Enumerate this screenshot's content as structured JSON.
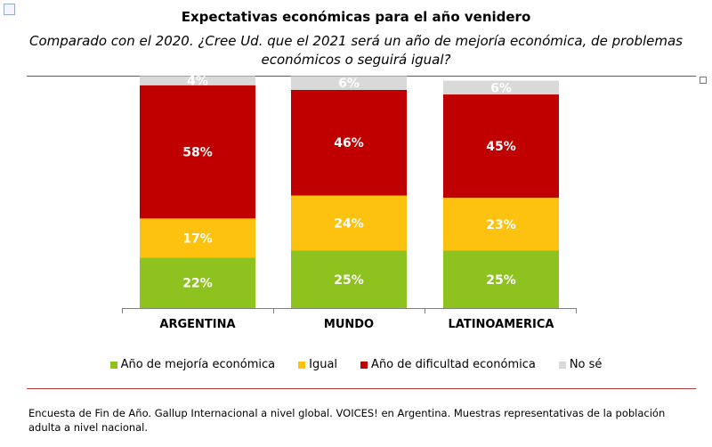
{
  "chart_data": {
    "type": "stacked-bar",
    "title": "Expectativas económicas para  el año venidero",
    "subtitle": "Comparado con el 2020. ¿Cree Ud. que el 2021 será un año de mejoría económica, de problemas económicos o seguirá igual?",
    "categories": [
      "ARGENTINA",
      "MUNDO",
      "LATINOAMERICA"
    ],
    "series": [
      {
        "name": "Año de mejoría económica",
        "color": "#8dc21f",
        "values": [
          22,
          25,
          25
        ]
      },
      {
        "name": "Igual",
        "color": "#fcc20f",
        "values": [
          17,
          24,
          23
        ]
      },
      {
        "name": "Año de dificultad económica",
        "color": "#c00000",
        "values": [
          58,
          46,
          45
        ]
      },
      {
        "name": "No sé",
        "color": "#d9d9d9",
        "values": [
          4,
          6,
          6
        ]
      }
    ],
    "value_suffix": "%",
    "ylim": [
      0,
      100
    ],
    "grid": false,
    "legend_position": "bottom"
  },
  "footer": "Encuesta de Fin de Año. Gallup Internacional a nivel global. VOICES! en Argentina. Muestras representativas de la población adulta a nivel nacional.",
  "icons": {
    "move_handle": "move-handle-icon",
    "resize_handle": "resize-handle-icon"
  },
  "colors": {
    "rule": "#b23a3a",
    "axis": "#7f7f7f"
  }
}
